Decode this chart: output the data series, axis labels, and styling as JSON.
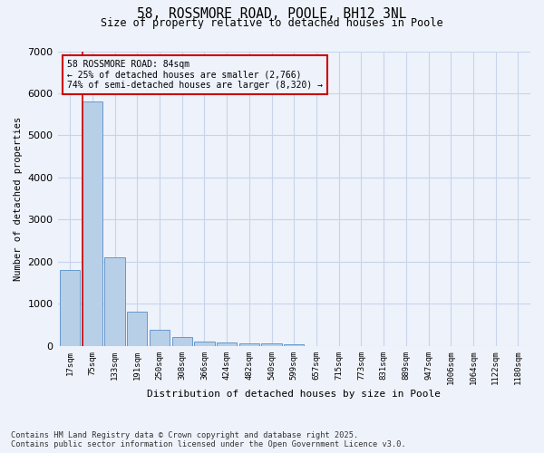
{
  "title_line1": "58, ROSSMORE ROAD, POOLE, BH12 3NL",
  "title_line2": "Size of property relative to detached houses in Poole",
  "xlabel": "Distribution of detached houses by size in Poole",
  "ylabel": "Number of detached properties",
  "annotation_title": "58 ROSSMORE ROAD: 84sqm",
  "annotation_line2": "← 25% of detached houses are smaller (2,766)",
  "annotation_line3": "74% of semi-detached houses are larger (8,320) →",
  "footer_line1": "Contains HM Land Registry data © Crown copyright and database right 2025.",
  "footer_line2": "Contains public sector information licensed under the Open Government Licence v3.0.",
  "property_bar_index": 1,
  "categories": [
    "17sqm",
    "75sqm",
    "133sqm",
    "191sqm",
    "250sqm",
    "308sqm",
    "366sqm",
    "424sqm",
    "482sqm",
    "540sqm",
    "599sqm",
    "657sqm",
    "715sqm",
    "773sqm",
    "831sqm",
    "889sqm",
    "947sqm",
    "1006sqm",
    "1064sqm",
    "1122sqm",
    "1180sqm"
  ],
  "values": [
    1800,
    5800,
    2100,
    820,
    380,
    220,
    110,
    90,
    70,
    55,
    40,
    0,
    0,
    0,
    0,
    0,
    0,
    0,
    0,
    0,
    0
  ],
  "bar_color": "#b8cfe8",
  "bar_edge_color": "#6699cc",
  "highlight_line_color": "#cc0000",
  "annotation_box_color": "#cc0000",
  "background_color": "#eef2fa",
  "grid_color": "#c8d4ec",
  "ylim": [
    0,
    7000
  ],
  "yticks": [
    0,
    1000,
    2000,
    3000,
    4000,
    5000,
    6000,
    7000
  ]
}
